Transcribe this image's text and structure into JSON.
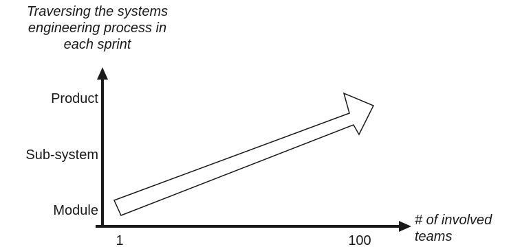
{
  "title_lines": [
    "Traversing the systems",
    "engineering process in",
    "each sprint"
  ],
  "y_levels": [
    "Product",
    "Sub-system",
    "Module"
  ],
  "x_ticks": [
    "1",
    "100"
  ],
  "x_axis_label_lines": [
    "# of involved",
    "teams"
  ],
  "colors": {
    "axis": "#1a1a1a",
    "arrow_fill": "#ffffff",
    "arrow_stroke": "#1a1a1a"
  }
}
